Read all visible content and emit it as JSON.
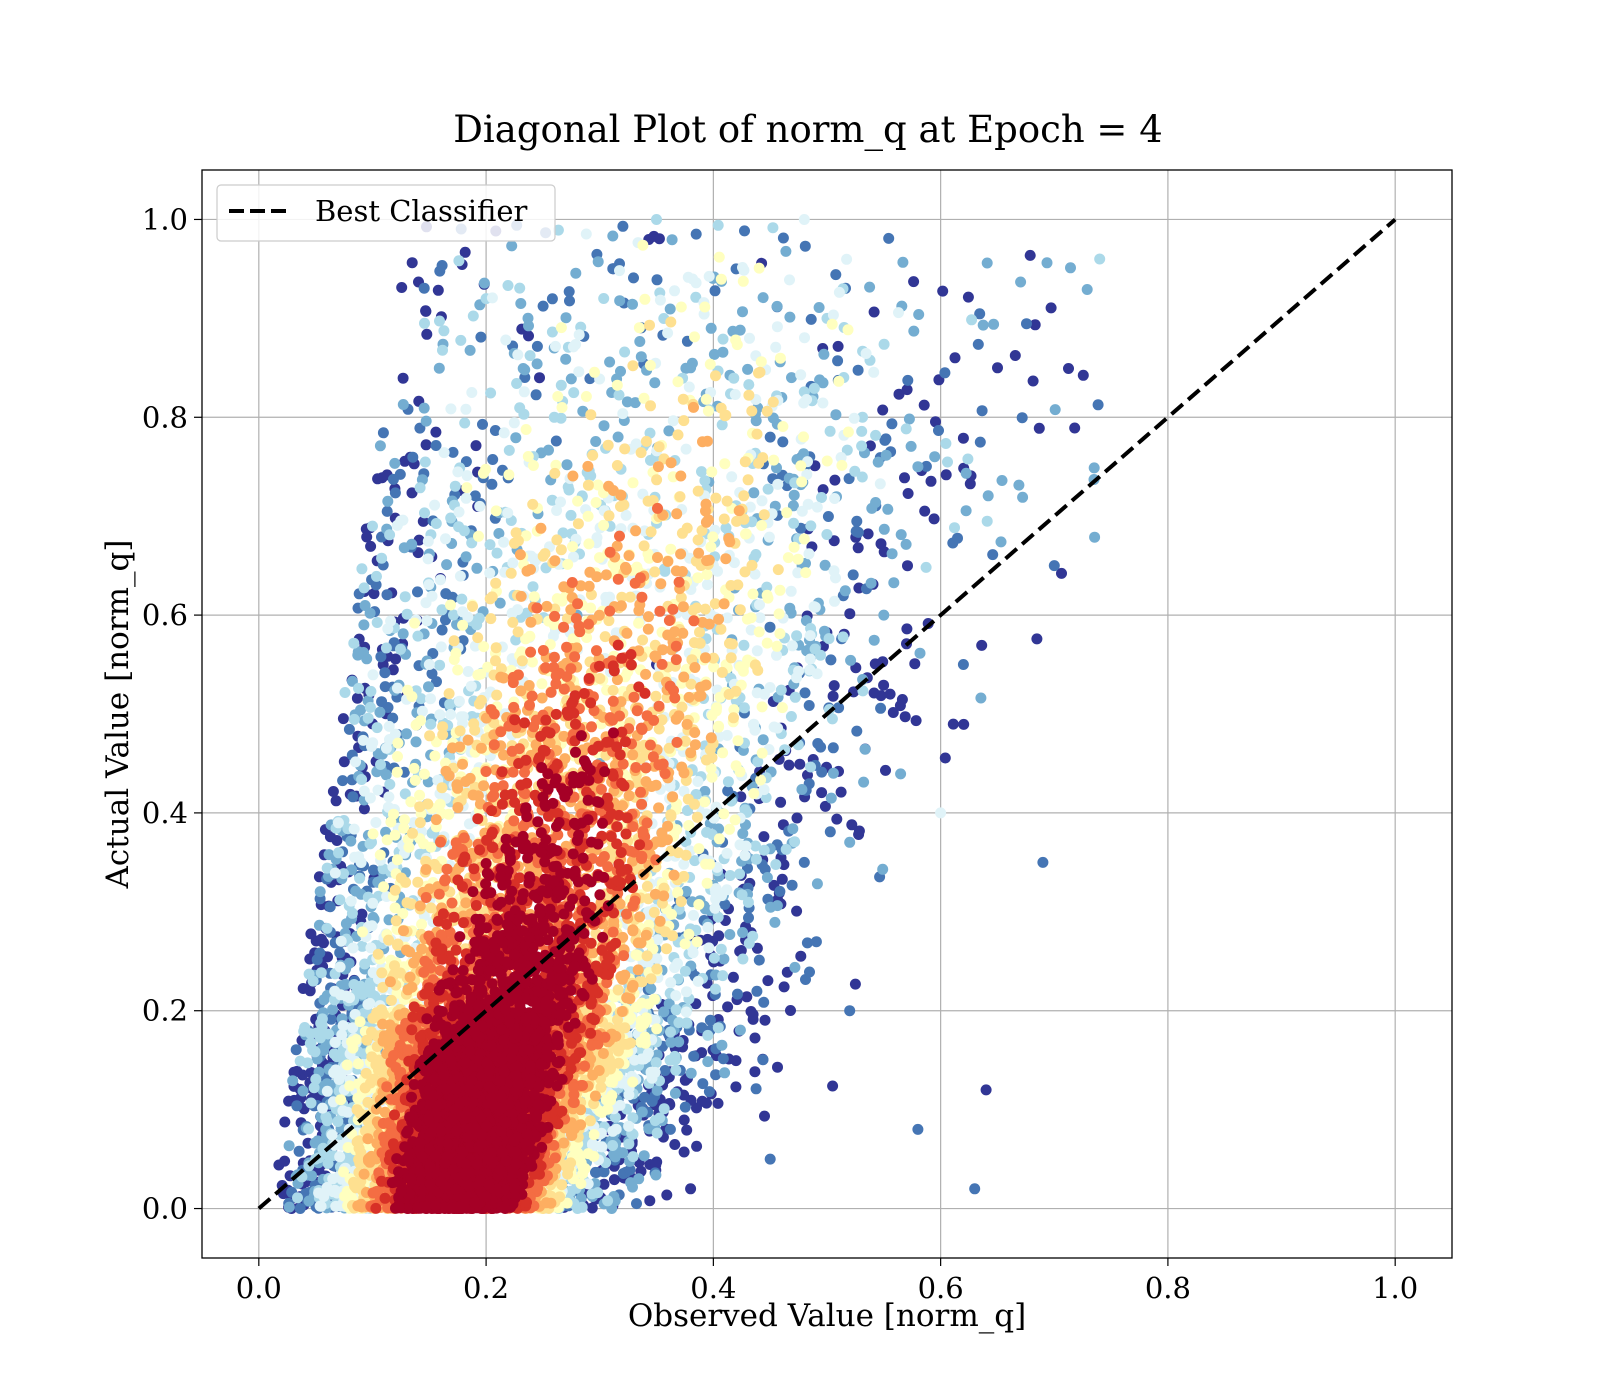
{
  "chart_data": {
    "type": "scatter",
    "title": "Diagonal Plot of norm_q at Epoch = 4",
    "xlabel": "Observed Value [norm_q]",
    "ylabel": "Actual Value [norm_q]",
    "xlim": [
      -0.05,
      1.05
    ],
    "ylim": [
      -0.05,
      1.05
    ],
    "x_ticks": [
      0.0,
      0.2,
      0.4,
      0.6,
      0.8,
      1.0
    ],
    "y_ticks": [
      0.0,
      0.2,
      0.4,
      0.6,
      0.8,
      1.0
    ],
    "x_tick_labels": [
      "0.0",
      "0.2",
      "0.4",
      "0.6",
      "0.8",
      "1.0"
    ],
    "y_tick_labels": [
      "0.0",
      "0.2",
      "0.4",
      "0.6",
      "0.8",
      "1.0"
    ],
    "grid": true,
    "legend": {
      "position": "upper-left",
      "entries": [
        "Best Classifier"
      ]
    },
    "reference_line": {
      "name": "Best Classifier",
      "x": [
        0.0,
        1.0
      ],
      "y": [
        0.0,
        1.0
      ],
      "style": "dashed",
      "color": "#000000"
    },
    "colormap": [
      "#a50026",
      "#d73027",
      "#f46d43",
      "#fdae61",
      "#fee090",
      "#ffffbf",
      "#e0f3f8",
      "#abd9e9",
      "#74add1",
      "#4575b4",
      "#313695"
    ],
    "scatter": {
      "approx_point_count": 30000,
      "color_encoding": "point density (red = dense, blue = sparse)",
      "points": [
        [
          0.05,
          0.05
        ],
        [
          0.08,
          0.1
        ],
        [
          0.1,
          0.03
        ],
        [
          0.12,
          0.15
        ],
        [
          0.15,
          0.08
        ],
        [
          0.18,
          0.12
        ],
        [
          0.2,
          0.05
        ],
        [
          0.22,
          0.18
        ],
        [
          0.25,
          0.1
        ],
        [
          0.28,
          0.22
        ],
        [
          0.3,
          0.08
        ],
        [
          0.32,
          0.3
        ],
        [
          0.18,
          0.35
        ],
        [
          0.25,
          0.4
        ],
        [
          0.3,
          0.45
        ],
        [
          0.22,
          0.5
        ],
        [
          0.35,
          0.55
        ],
        [
          0.28,
          0.6
        ],
        [
          0.4,
          0.65
        ],
        [
          0.32,
          0.72
        ],
        [
          0.45,
          0.78
        ],
        [
          0.38,
          0.85
        ],
        [
          0.5,
          0.9
        ],
        [
          0.42,
          0.95
        ],
        [
          0.55,
          0.6
        ],
        [
          0.48,
          0.35
        ],
        [
          0.52,
          0.2
        ],
        [
          0.45,
          0.05
        ],
        [
          0.6,
          0.4
        ],
        [
          0.58,
          0.75
        ],
        [
          0.62,
          0.55
        ],
        [
          0.65,
          0.85
        ],
        [
          0.7,
          0.65
        ],
        [
          0.69,
          0.35
        ],
        [
          0.74,
          0.96
        ],
        [
          0.35,
          1.0
        ],
        [
          0.48,
          1.0
        ],
        [
          0.1,
          0.69
        ],
        [
          0.07,
          0.39
        ],
        [
          0.2,
          0.92
        ],
        [
          0.63,
          0.02
        ],
        [
          0.58,
          0.08
        ],
        [
          0.64,
          0.12
        ],
        [
          0.33,
          0.03
        ],
        [
          0.38,
          0.02
        ],
        [
          0.15,
          0.55
        ],
        [
          0.13,
          0.48
        ],
        [
          0.26,
          0.8
        ]
      ]
    }
  }
}
